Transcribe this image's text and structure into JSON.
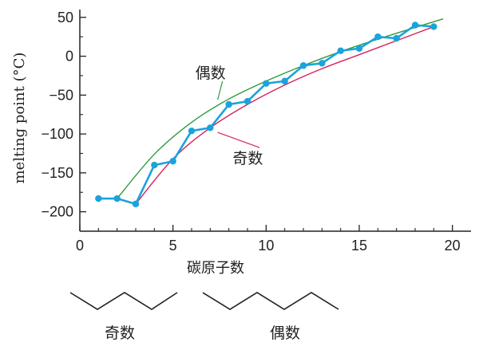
{
  "chart_data": {
    "type": "line",
    "xlabel": "碳原子数",
    "ylabel": "melting point (°C)",
    "xlim": [
      0,
      21
    ],
    "ylim": [
      -225,
      60
    ],
    "xticks": [
      0,
      5,
      10,
      15,
      20
    ],
    "yticks": [
      50,
      0,
      -50,
      -100,
      -150,
      -200
    ],
    "ytick_labels": [
      "50",
      "0",
      "−50",
      "−100",
      "−150",
      "−200"
    ],
    "grid": false,
    "series": [
      {
        "name": "",
        "color": "#1aa3dc",
        "markers": true,
        "x": [
          1,
          2,
          3,
          4,
          5,
          6,
          7,
          8,
          9,
          10,
          11,
          12,
          13,
          14,
          15,
          16,
          17,
          18,
          19
        ],
        "y": [
          -183,
          -183,
          -190,
          -140,
          -135,
          -96,
          -92,
          -62,
          -58,
          -35,
          -32,
          -12,
          -9,
          7,
          10,
          25,
          23,
          40,
          38
        ]
      },
      {
        "name": "偶数",
        "color": "#2e9a3c",
        "markers": false,
        "x": [
          2,
          4,
          6,
          8,
          10,
          12,
          14,
          16,
          18,
          19.5
        ],
        "y": [
          -183,
          -126,
          -85,
          -55,
          -32,
          -12,
          6,
          22,
          37,
          48
        ]
      },
      {
        "name": "奇数",
        "color": "#d3245e",
        "markers": false,
        "x": [
          3,
          5,
          7,
          9,
          11,
          13,
          15,
          17,
          19
        ],
        "y": [
          -190,
          -132,
          -92,
          -62,
          -37,
          -16,
          2,
          20,
          38
        ]
      }
    ],
    "annotations": [
      {
        "text": "偶数",
        "series": "偶数",
        "x": 6.2,
        "y": -28,
        "pointer_to": [
          7.4,
          -56
        ]
      },
      {
        "text": "奇数",
        "series": "奇数",
        "x": 8.2,
        "y": -138,
        "pointer_to": [
          7.4,
          -98
        ]
      }
    ]
  },
  "molecule_labels": {
    "odd": "奇数",
    "even": "偶数"
  }
}
